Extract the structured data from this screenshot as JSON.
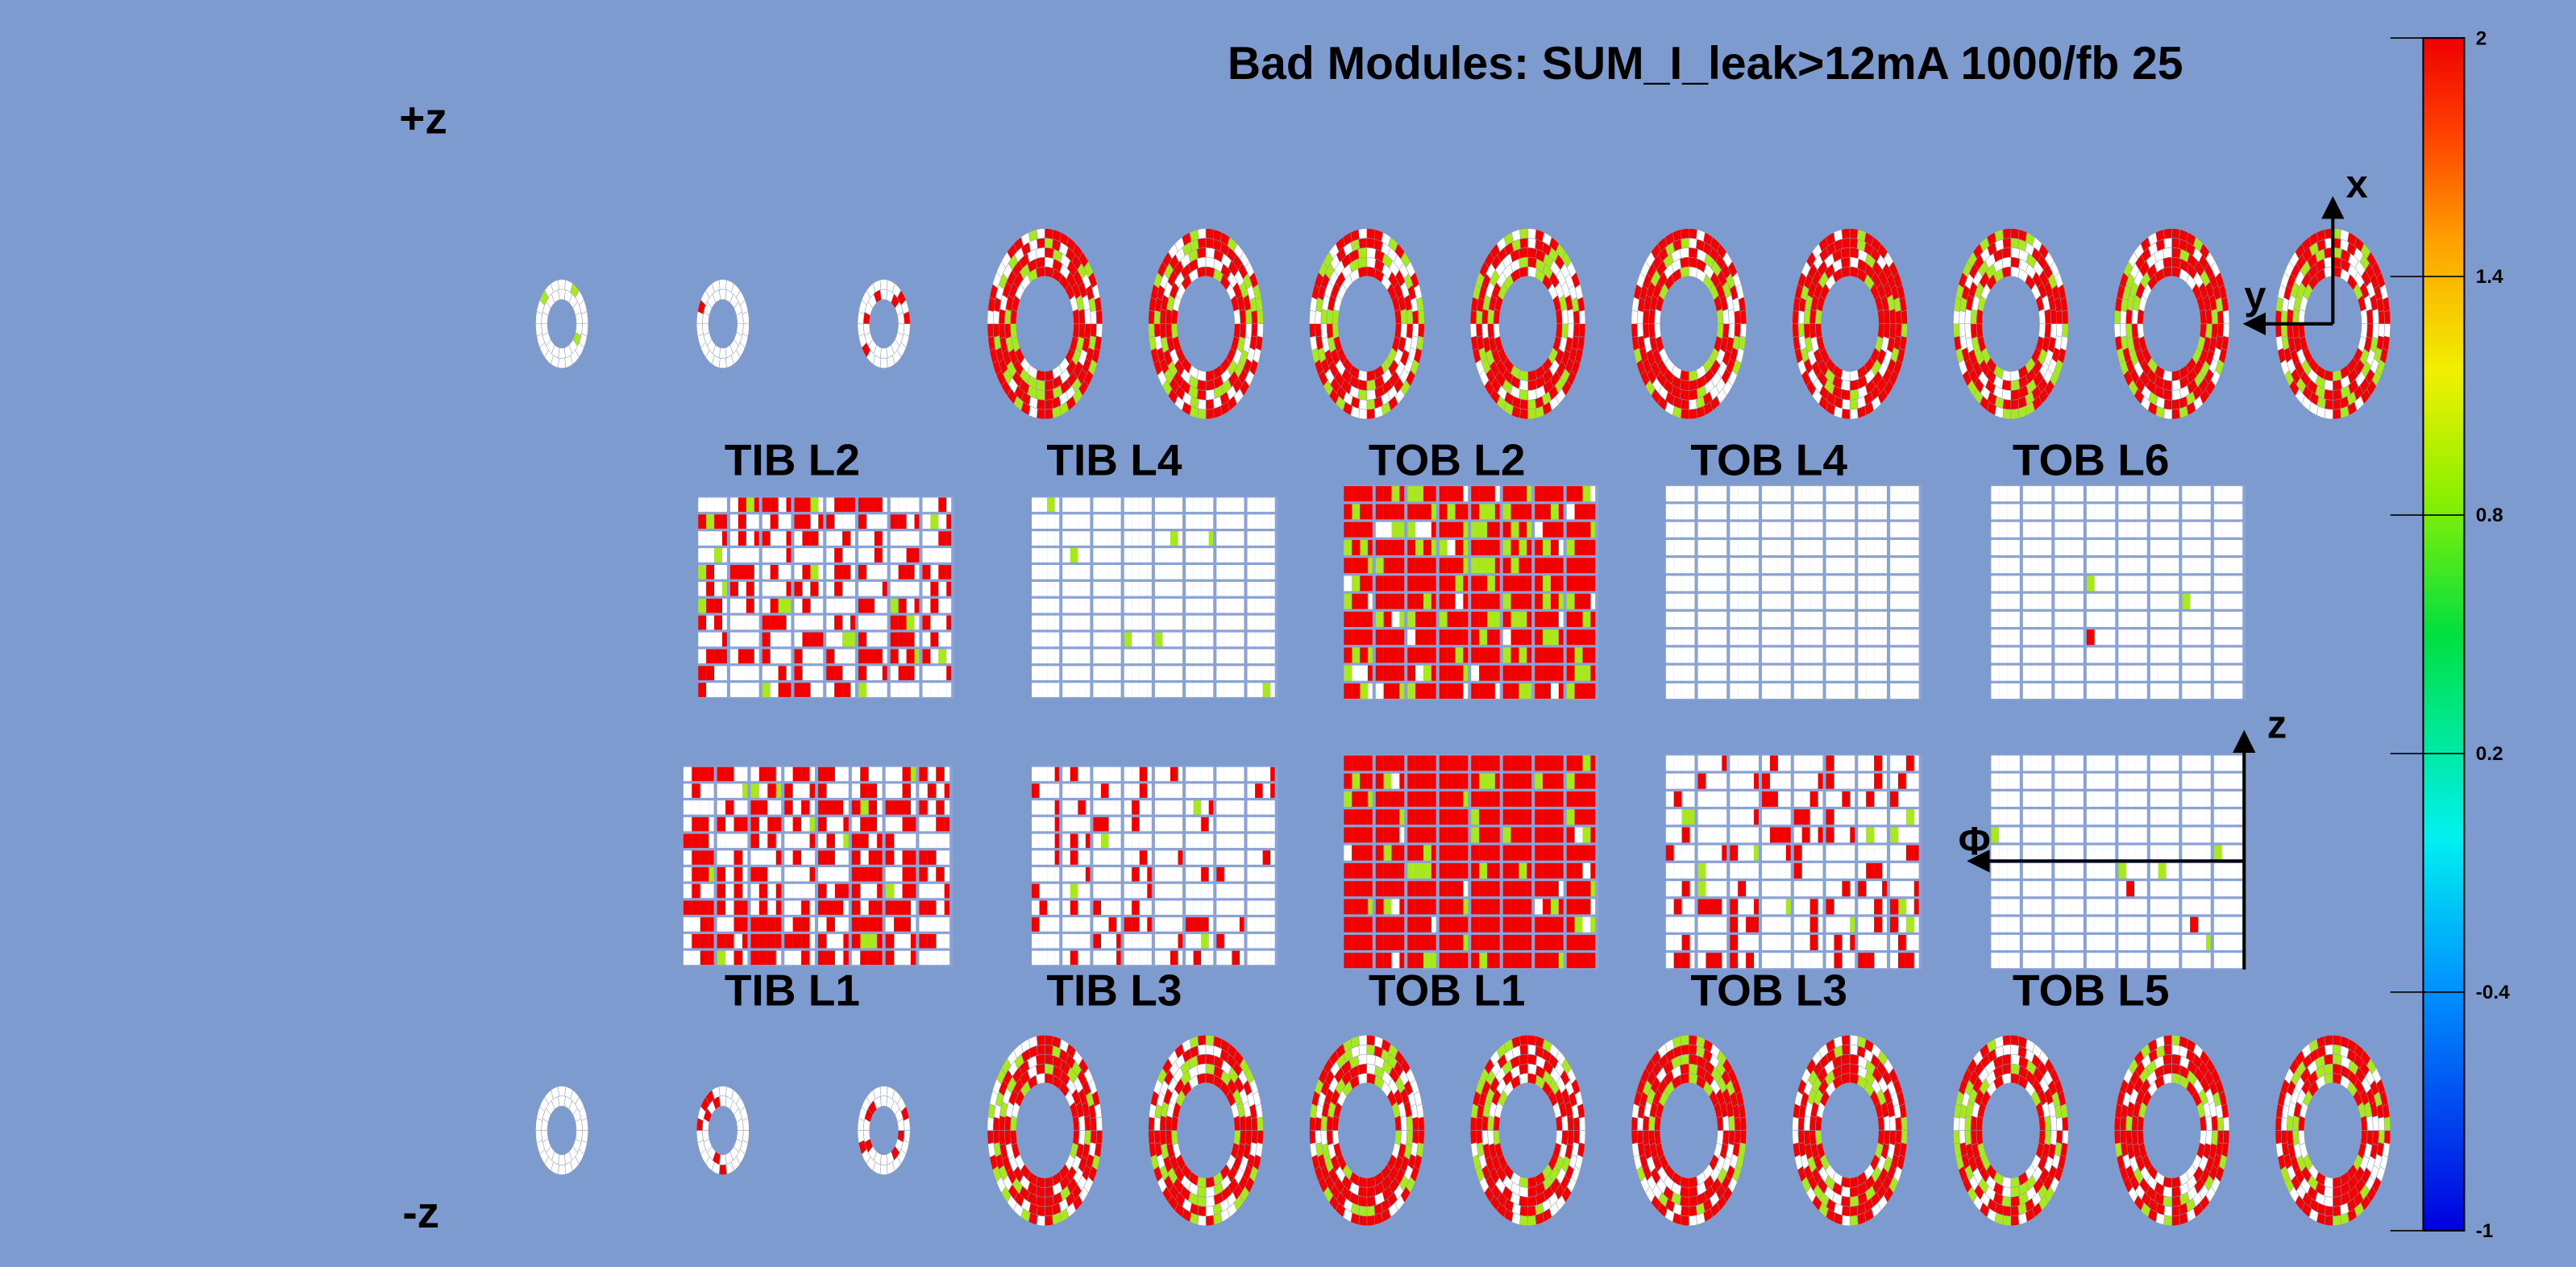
{
  "title": "Bad Modules: SUM_I_leak>12mA 1000/fb 25",
  "z_labels": {
    "plus": "+z",
    "minus": "-z"
  },
  "panels_top": [
    {
      "label": "TIB L2"
    },
    {
      "label": "TIB L4"
    },
    {
      "label": "TOB L2"
    },
    {
      "label": "TOB L4"
    },
    {
      "label": "TOB L6"
    }
  ],
  "panels_bottom": [
    {
      "label": "TIB L1"
    },
    {
      "label": "TIB L3"
    },
    {
      "label": "TOB L1"
    },
    {
      "label": "TOB L3"
    },
    {
      "label": "TOB L5"
    }
  ],
  "axes": {
    "x": "x",
    "y": "y",
    "z": "z",
    "phi": "Φ"
  },
  "colorbar": {
    "lim": [
      -1,
      2
    ],
    "ticks": [
      -1,
      -0.4,
      0.2,
      0.8,
      1.4,
      2
    ]
  }
}
